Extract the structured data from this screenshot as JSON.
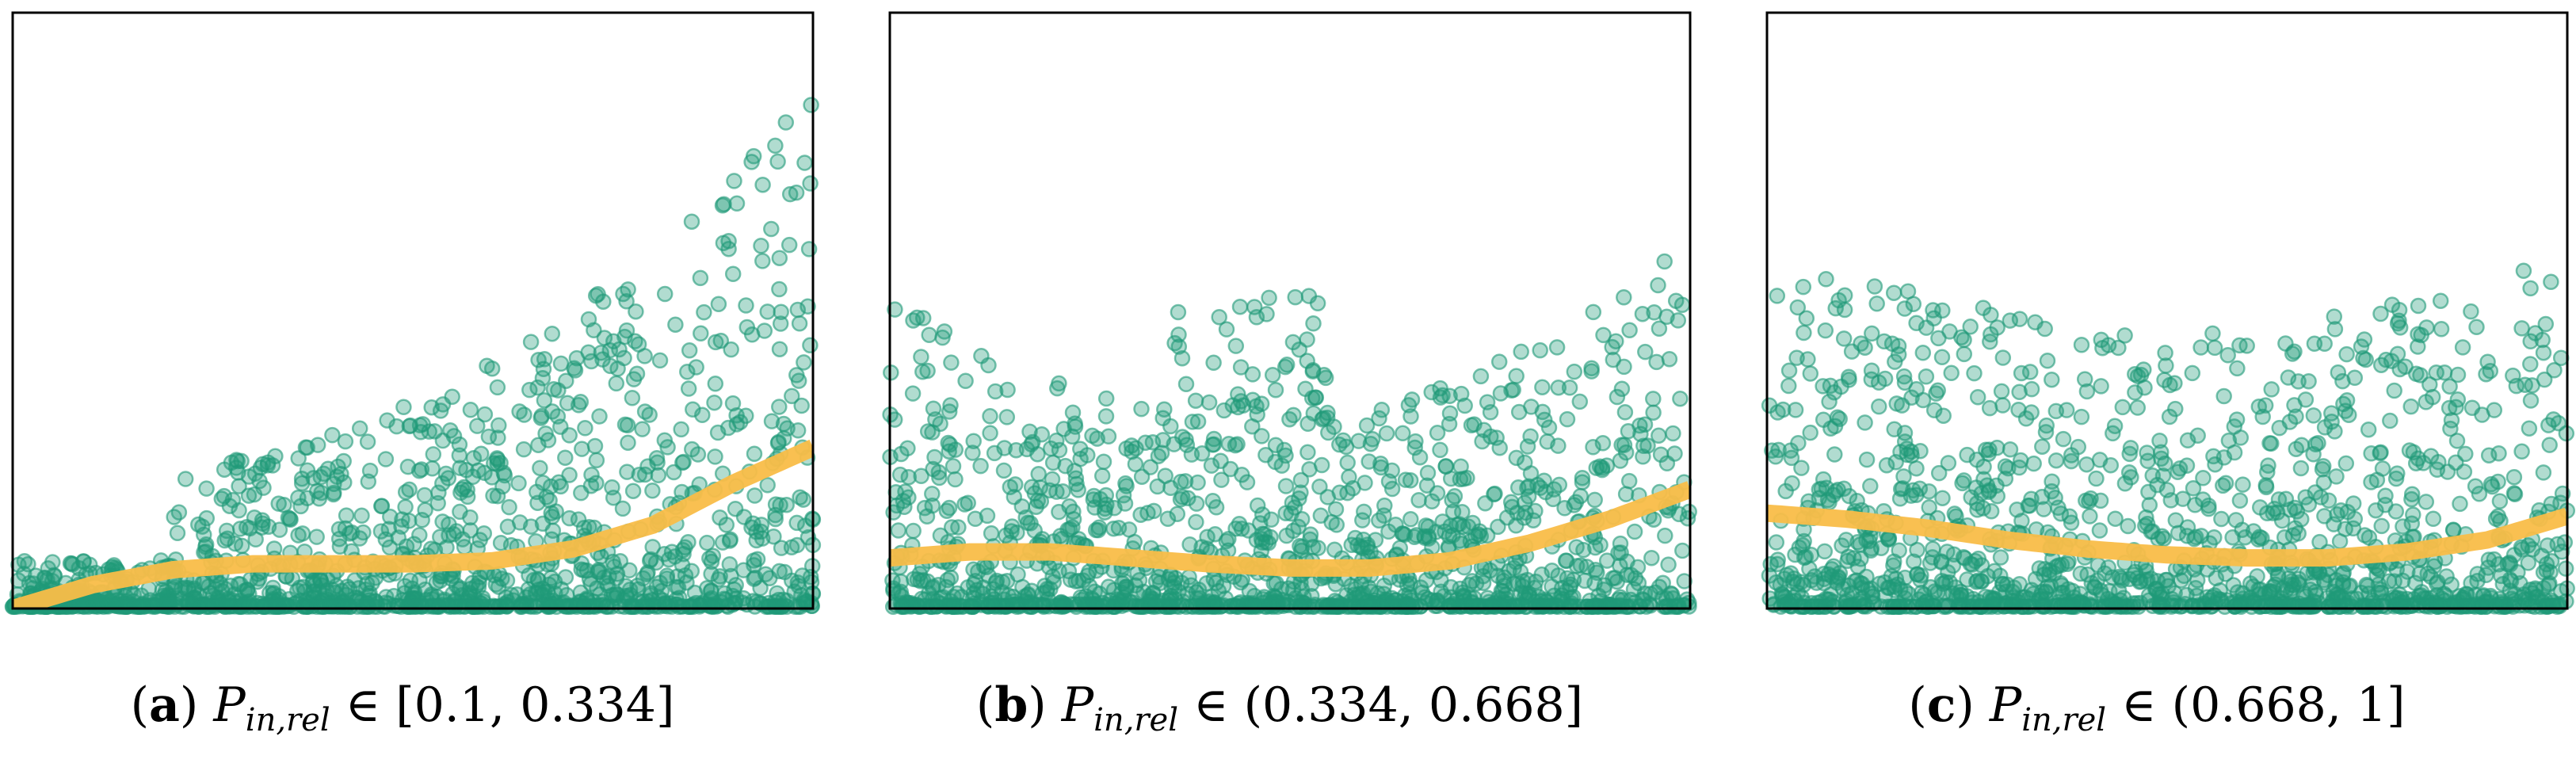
{
  "colors": {
    "points": "#1f9a78",
    "trend": "#f9bd48",
    "frame": "#000000"
  },
  "captions": [
    {
      "label": "a",
      "symbol": "P",
      "subscript": "in,rel",
      "relation": "∈",
      "interval": "[0.1, 0.334]"
    },
    {
      "label": "b",
      "symbol": "P",
      "subscript": "in,rel",
      "relation": "∈",
      "interval": "(0.334, 0.668]"
    },
    {
      "label": "c",
      "symbol": "P",
      "subscript": "in,rel",
      "relation": "∈",
      "interval": "(0.668, 1]"
    }
  ],
  "chart_data": [
    {
      "type": "scatter",
      "title": "",
      "xlabel": "",
      "ylabel": "",
      "xlim": [
        0,
        1
      ],
      "ylim": [
        0,
        1
      ],
      "axes_ticks": false,
      "grid": false,
      "scatter": {
        "count": 1500,
        "seed": 11,
        "profile": "rising-tail"
      },
      "trend_curve": {
        "x": [
          0,
          0.1,
          0.2,
          0.3,
          0.4,
          0.5,
          0.6,
          0.7,
          0.8,
          0.9,
          1.0
        ],
        "y": [
          0,
          0.04,
          0.065,
          0.075,
          0.075,
          0.075,
          0.08,
          0.1,
          0.14,
          0.21,
          0.27
        ]
      }
    },
    {
      "type": "scatter",
      "title": "",
      "xlabel": "",
      "ylabel": "",
      "xlim": [
        0,
        1
      ],
      "ylim": [
        0,
        1
      ],
      "axes_ticks": false,
      "grid": false,
      "scatter": {
        "count": 1500,
        "seed": 23,
        "profile": "flat-both-ends"
      },
      "trend_curve": {
        "x": [
          0,
          0.1,
          0.2,
          0.3,
          0.4,
          0.5,
          0.6,
          0.7,
          0.8,
          0.9,
          1.0
        ],
        "y": [
          0.085,
          0.095,
          0.095,
          0.085,
          0.075,
          0.068,
          0.068,
          0.08,
          0.11,
          0.15,
          0.2
        ]
      }
    },
    {
      "type": "scatter",
      "title": "",
      "xlabel": "",
      "ylabel": "",
      "xlim": [
        0,
        1
      ],
      "ylim": [
        0,
        1
      ],
      "axes_ticks": false,
      "grid": false,
      "scatter": {
        "count": 1500,
        "seed": 37,
        "profile": "flat-high"
      },
      "trend_curve": {
        "x": [
          0,
          0.1,
          0.2,
          0.3,
          0.4,
          0.5,
          0.6,
          0.7,
          0.8,
          0.9,
          1.0
        ],
        "y": [
          0.16,
          0.15,
          0.135,
          0.115,
          0.1,
          0.09,
          0.085,
          0.085,
          0.095,
          0.115,
          0.155
        ]
      }
    }
  ]
}
